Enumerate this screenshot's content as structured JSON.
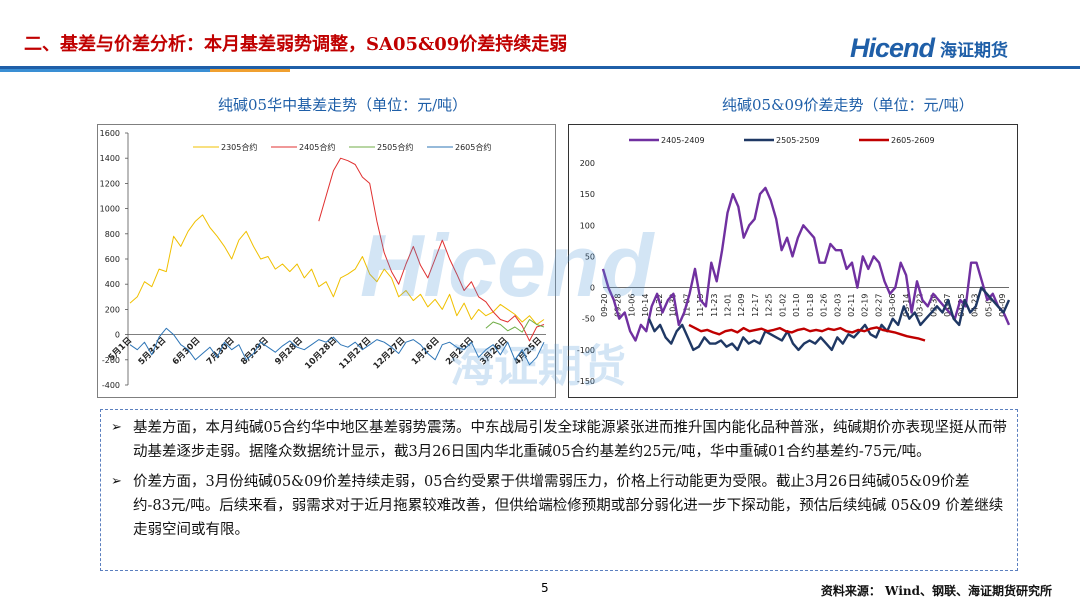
{
  "header": {
    "title": "二、基差与价差分析：本月基差弱势调整，SA05&09价差持续走弱",
    "logo_en": "Hicend",
    "logo_cn": "海证期货",
    "rule_color": "#1f5fa8",
    "rule_accent_colors": [
      "#3a8fd4",
      "#f0a030"
    ]
  },
  "charts": {
    "left_title": "纯碱05华中基差走势（单位：元/吨）",
    "right_title": "纯碱05&09价差走势（单位：元/吨）"
  },
  "chart_data": [
    {
      "type": "line",
      "title": "纯碱05华中基差走势（单位：元/吨）",
      "ylim": [
        -400,
        1600
      ],
      "yticks": [
        -400,
        -200,
        0,
        200,
        400,
        600,
        800,
        1000,
        1200,
        1400,
        1600
      ],
      "xticks": [
        "5月31日",
        "6月30日",
        "7月30日",
        "8月29日",
        "9月28日",
        "10月28日",
        "11月27日",
        "12月27日",
        "1月26日",
        "2月25日",
        "3月26日",
        "4月25日"
      ],
      "xticks_first": "5月1日",
      "legend_position": "top",
      "series": [
        {
          "name": "2305合约",
          "color": "#f0c000",
          "values": [
            250,
            300,
            420,
            380,
            520,
            500,
            780,
            700,
            820,
            900,
            950,
            850,
            780,
            700,
            600,
            750,
            820,
            700,
            600,
            620,
            520,
            560,
            500,
            560,
            450,
            520,
            380,
            420,
            300,
            450,
            480,
            520,
            620,
            480,
            420,
            520,
            450,
            300,
            350,
            270,
            320,
            220,
            280,
            200,
            320,
            150,
            250,
            120,
            200,
            150,
            180,
            240,
            200,
            160,
            100,
            150,
            80,
            120
          ]
        },
        {
          "name": "2405合约",
          "color": "#e03030",
          "values": [
            null,
            null,
            null,
            null,
            null,
            null,
            null,
            null,
            null,
            null,
            null,
            null,
            null,
            null,
            null,
            null,
            null,
            null,
            null,
            null,
            null,
            null,
            null,
            null,
            null,
            null,
            900,
            1100,
            1300,
            1400,
            1380,
            1350,
            1250,
            1200,
            900,
            650,
            500,
            400,
            560,
            700,
            550,
            450,
            600,
            750,
            600,
            480,
            350,
            420,
            300,
            260,
            180,
            120,
            100,
            150,
            70,
            -50,
            60,
            80
          ]
        },
        {
          "name": "2505合约",
          "color": "#70ad47",
          "values": [
            null,
            null,
            null,
            null,
            null,
            null,
            null,
            null,
            null,
            null,
            null,
            null,
            null,
            null,
            null,
            null,
            null,
            null,
            null,
            null,
            null,
            null,
            null,
            null,
            null,
            null,
            null,
            null,
            null,
            null,
            null,
            null,
            null,
            null,
            null,
            null,
            null,
            null,
            null,
            null,
            null,
            null,
            null,
            null,
            null,
            null,
            null,
            null,
            null,
            50,
            100,
            80,
            30,
            60,
            20,
            120,
            80,
            60
          ]
        },
        {
          "name": "2605合约",
          "color": "#2e75b6",
          "values": [
            -80,
            -120,
            -60,
            -160,
            -20,
            50,
            0,
            -80,
            -120,
            -200,
            -150,
            -100,
            -180,
            -60,
            -120,
            -80,
            -200,
            -150,
            -60,
            -100,
            -140,
            -90,
            -50,
            -100,
            -120,
            -80,
            -40,
            -60,
            -20,
            -80,
            -100,
            -60,
            -120,
            -80,
            -40,
            -60,
            -100,
            -150,
            -60,
            -40,
            -80,
            -150,
            -200,
            -80,
            -60,
            -100,
            -120,
            -60,
            -180,
            -120,
            -80,
            -160,
            -60,
            -200,
            -120,
            -240,
            -180,
            -60
          ]
        }
      ]
    },
    {
      "type": "line",
      "title": "纯碱05&09价差走势（单位：元/吨）",
      "ylim": [
        -150,
        200
      ],
      "yticks": [
        -150,
        -100,
        -50,
        0,
        50,
        100,
        150,
        200
      ],
      "xticks": [
        "09-20",
        "09-28",
        "10-06",
        "10-14",
        "10-22",
        "10-30",
        "11-07",
        "11-15",
        "11-23",
        "12-01",
        "12-09",
        "12-17",
        "12-25",
        "01-02",
        "01-10",
        "01-18",
        "01-26",
        "02-03",
        "02-11",
        "02-19",
        "02-27",
        "03-06",
        "03-14",
        "03-22",
        "03-30",
        "04-07",
        "04-15",
        "04-23",
        "05-01",
        "05-09"
      ],
      "legend_position": "top",
      "series": [
        {
          "name": "2405-2409",
          "color": "#7030a0",
          "values": [
            30,
            0,
            -20,
            -50,
            -40,
            -70,
            -85,
            -60,
            -70,
            -30,
            -10,
            -40,
            -20,
            -10,
            -60,
            -40,
            -10,
            30,
            -20,
            -30,
            40,
            10,
            60,
            120,
            150,
            130,
            80,
            100,
            110,
            150,
            160,
            140,
            110,
            60,
            80,
            50,
            80,
            100,
            90,
            80,
            40,
            40,
            70,
            60,
            60,
            30,
            40,
            0,
            50,
            30,
            50,
            40,
            10,
            -10,
            0,
            40,
            20,
            -40,
            10,
            -20,
            -30,
            -10,
            -20,
            -30,
            -40,
            -50,
            -20,
            -30,
            40,
            40,
            10,
            -20,
            -10,
            -30,
            -40,
            -60
          ]
        },
        {
          "name": "2505-2509",
          "color": "#1f3864",
          "values": [
            -50,
            -70,
            -60,
            -80,
            -90,
            -70,
            -60,
            -80,
            -100,
            -95,
            -80,
            -90,
            -90,
            -85,
            -95,
            -90,
            -100,
            -80,
            -90,
            -85,
            -90,
            -70,
            -75,
            -80,
            -85,
            -70,
            -90,
            -100,
            -90,
            -85,
            -90,
            -80,
            -90,
            -100,
            -80,
            -90,
            -75,
            -80,
            -70,
            -60,
            -75,
            -80,
            -60,
            -70,
            -50,
            -60,
            -30,
            -50,
            -40,
            -60,
            -50,
            -40,
            -30,
            -40,
            -20,
            -50,
            -60,
            -20,
            -40,
            -30,
            0,
            -10,
            -20,
            -30,
            -40,
            -20
          ]
        },
        {
          "name": "2605-2609",
          "color": "#c00000",
          "values": [
            -60,
            -65,
            -70,
            -68,
            -72,
            -75,
            -70,
            -68,
            -72,
            -65,
            -70,
            -68,
            -66,
            -70,
            -68,
            -65,
            -70,
            -72,
            -68,
            -66,
            -70,
            -68,
            -70,
            -66,
            -68,
            -65,
            -70,
            -72,
            -68,
            -70,
            -66,
            -64,
            -68,
            -70,
            -72,
            -75,
            -78,
            -80,
            -82,
            -85
          ]
        }
      ]
    }
  ],
  "text_box": {
    "p1": "基差方面，本月纯碱05合约华中地区基差弱势震荡。中东战局引发全球能源紧张进而推升国内能化品种普涨，纯碱期价亦表现坚挺从而带动基差逐步走弱。据隆众数据统计显示，截3月26日国内华北重碱05合约基差约25元/吨，华中重碱01合约基差约-75元/吨。",
    "p2": "价差方面，3月份纯碱05&09价差持续走弱，05合约受累于供增需弱压力，价格上行动能更为受限。截止3月26日纯碱05&09价差约-83元/吨。后续来看，弱需求对于近月拖累较难改善，但供给端检修预期或部分弱化进一步下探动能，预估后续纯碱 05&09 价差继续走弱空间或有限。",
    "bullet_symbol": "➢"
  },
  "footer": {
    "page_number": "5",
    "source": "资料来源： Wind、钢联、海证期货研究所"
  }
}
